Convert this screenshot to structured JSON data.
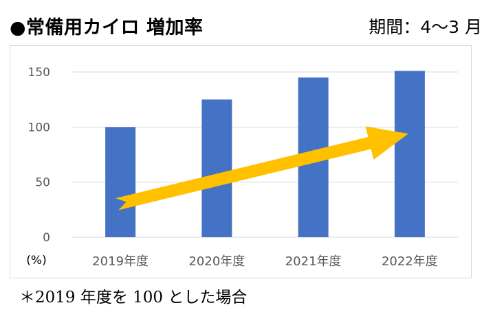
{
  "header": {
    "title": "●常備用カイロ 増加率",
    "period": "期間：4～3 月"
  },
  "footnote": "＊2019 年度を 100 とした場合",
  "colors": {
    "bar": "#4472c4",
    "arrow": "#ffc000",
    "grid": "#d9d9d9",
    "axis_text": "#595959"
  },
  "chart_data": {
    "type": "bar",
    "title": "常備用カイロ 増加率",
    "categories": [
      "2019年度",
      "2020年度",
      "2021年度",
      "2022年度"
    ],
    "values": [
      100,
      125,
      145,
      151
    ],
    "ylim": [
      0,
      150
    ],
    "yticks": [
      0,
      50,
      100,
      150
    ],
    "ylabel": "(%)",
    "xlabel": "",
    "grid": true,
    "legend": "none",
    "annotations": [
      {
        "type": "arrow",
        "description": "upward trend arrow",
        "from": [
          0,
          30
        ],
        "to": [
          3,
          94
        ]
      }
    ]
  }
}
